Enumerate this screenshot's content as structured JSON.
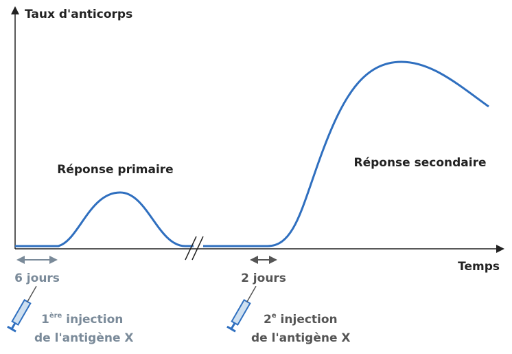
{
  "axes": {
    "y_label": "Taux d'anticorps",
    "x_label": "Temps"
  },
  "labels": {
    "primary": "Réponse primaire",
    "secondary": "Réponse secondaire"
  },
  "delays": {
    "first": "6 jours",
    "second": "2 jours"
  },
  "injections": [
    {
      "number": "1",
      "superscript": "ère",
      "line1": " injection",
      "line2": "de l'antigène X"
    },
    {
      "number": "2",
      "superscript": "e",
      "line1": " injection",
      "line2": "de l'antigène X"
    }
  ]
}
